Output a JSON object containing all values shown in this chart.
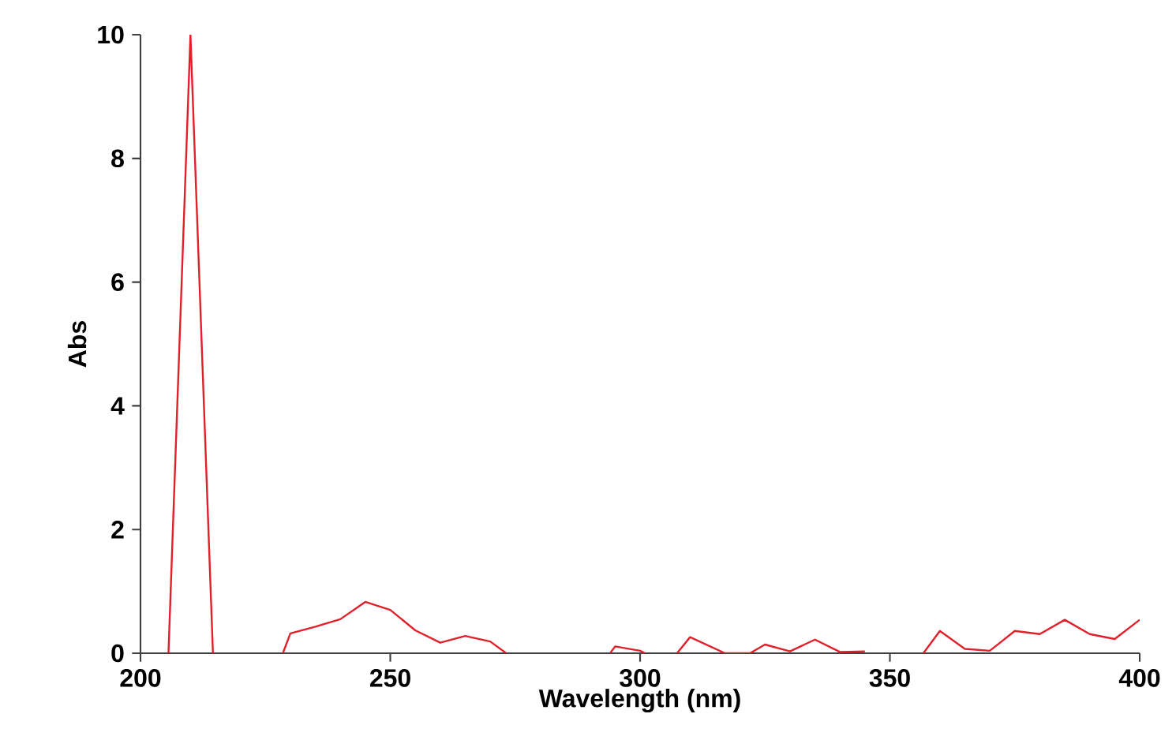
{
  "chart_data": {
    "type": "line",
    "xlabel": "Wavelength (nm)",
    "ylabel": "Abs",
    "x": [
      205.6,
      210,
      214.5,
      220,
      228.5,
      230,
      235,
      240,
      245,
      250,
      255,
      260,
      265,
      270,
      273.2,
      285,
      294,
      295,
      300,
      301,
      304,
      307.4,
      310,
      317,
      322,
      325,
      330,
      335,
      340,
      345,
      350,
      356.7,
      360,
      365,
      370,
      375,
      380,
      385,
      390,
      395,
      400
    ],
    "series": [
      {
        "color": "#e0202a",
        "values": [
          0,
          10,
          0,
          null,
          0,
          0.32,
          0.43,
          0.55,
          0.83,
          0.7,
          0.37,
          0.17,
          0.28,
          0.19,
          0,
          null,
          0,
          0.11,
          0.04,
          0,
          null,
          0,
          0.26,
          0,
          0,
          0.14,
          0.03,
          0.22,
          0.02,
          0.03,
          null,
          0,
          0.36,
          0.07,
          0.04,
          0.36,
          0.31,
          0.54,
          0.31,
          0.23,
          0.54
        ]
      }
    ],
    "xlim": [
      200,
      400
    ],
    "ylim": [
      0,
      10
    ],
    "xticks": [
      200,
      250,
      300,
      350,
      400
    ],
    "yticks": [
      0,
      2,
      4,
      6,
      8,
      10
    ],
    "grid": false,
    "marker": "none",
    "line_style": "solid"
  }
}
